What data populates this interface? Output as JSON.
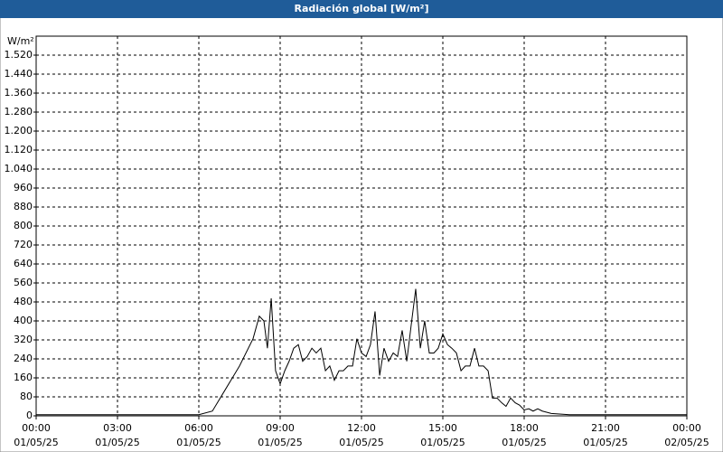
{
  "chart_data": {
    "type": "line",
    "title": "Radiación global [W/m²]",
    "y_label": "W/m²",
    "color": "#000000",
    "grid": true,
    "xlim": [
      0,
      24
    ],
    "ylim": [
      0,
      1600
    ],
    "xticks": [
      {
        "value": 0,
        "label": "00:00 01/05/25"
      },
      {
        "value": 3,
        "label": "03:00 01/05/25"
      },
      {
        "value": 6,
        "label": "06:00 01/05/25"
      },
      {
        "value": 9,
        "label": "09:00 01/05/25"
      },
      {
        "value": 12,
        "label": "12:00 01/05/25"
      },
      {
        "value": 15,
        "label": "15:00 01/05/25"
      },
      {
        "value": 18,
        "label": "18:00 01/05/25"
      },
      {
        "value": 21,
        "label": "21:00 01/05/25"
      },
      {
        "value": 24,
        "label": "00:00 02/05/25"
      }
    ],
    "yticks": [
      0,
      80,
      160,
      240,
      320,
      400,
      480,
      560,
      640,
      720,
      800,
      880,
      960,
      {
        "value": 1040,
        "label": "1.040"
      },
      {
        "value": 1120,
        "label": "1.120"
      },
      {
        "value": 1200,
        "label": "1.200"
      },
      {
        "value": 1280,
        "label": "1.280"
      },
      {
        "value": 1360,
        "label": "1.360"
      },
      {
        "value": 1440,
        "label": "1.440"
      },
      {
        "value": 1520,
        "label": "1.520"
      }
    ],
    "x": [
      0,
      6,
      6.5,
      7,
      7.5,
      8,
      8.23,
      8.4,
      8.53,
      8.67,
      8.83,
      9,
      9.17,
      9.33,
      9.5,
      9.67,
      9.83,
      10,
      10.17,
      10.33,
      10.5,
      10.67,
      10.83,
      11,
      11.17,
      11.33,
      11.5,
      11.67,
      11.83,
      12,
      12.17,
      12.33,
      12.5,
      12.67,
      12.83,
      13,
      13.17,
      13.33,
      13.5,
      13.67,
      13.83,
      14,
      14.17,
      14.33,
      14.5,
      14.67,
      14.83,
      15,
      15.17,
      15.33,
      15.5,
      15.67,
      15.83,
      16,
      16.17,
      16.33,
      16.5,
      16.67,
      16.83,
      17,
      17.17,
      17.33,
      17.5,
      17.67,
      17.83,
      18,
      18.17,
      18.33,
      18.5,
      18.67,
      19,
      19.67,
      24
    ],
    "values": [
      5,
      5,
      20,
      115,
      210,
      325,
      420,
      400,
      285,
      495,
      190,
      135,
      190,
      230,
      285,
      300,
      230,
      250,
      285,
      265,
      285,
      190,
      210,
      150,
      190,
      190,
      210,
      210,
      325,
      265,
      250,
      300,
      440,
      170,
      285,
      230,
      265,
      250,
      360,
      230,
      380,
      535,
      285,
      400,
      265,
      265,
      285,
      345,
      300,
      285,
      265,
      190,
      210,
      210,
      285,
      210,
      210,
      190,
      75,
      75,
      55,
      40,
      75,
      55,
      45,
      25,
      30,
      20,
      30,
      20,
      10,
      5,
      5
    ]
  }
}
